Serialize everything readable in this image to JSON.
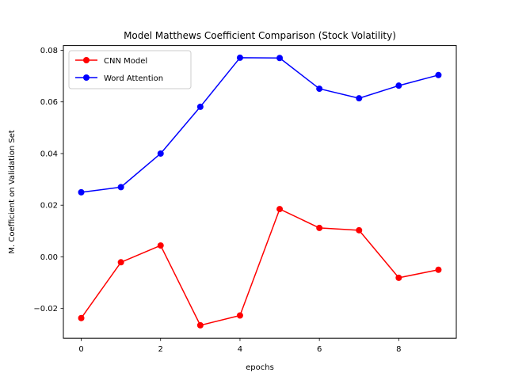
{
  "chart_data": {
    "type": "line",
    "title": "Model Matthews Coefficient Comparison (Stock Volatility)",
    "xlabel": "epochs",
    "ylabel": "M. Coefficient on Validation Set",
    "x": [
      0,
      1,
      2,
      3,
      4,
      5,
      6,
      7,
      8,
      9
    ],
    "xlim": [
      -0.45,
      9.45
    ],
    "ylim": [
      -0.0315,
      0.0818
    ],
    "x_ticks": [
      0,
      2,
      4,
      6,
      8
    ],
    "x_tick_labels": [
      "0",
      "2",
      "4",
      "6",
      "8"
    ],
    "y_ticks": [
      -0.02,
      0.0,
      0.02,
      0.04,
      0.06,
      0.08
    ],
    "y_tick_labels": [
      "−0.02",
      "0.00",
      "0.02",
      "0.04",
      "0.06",
      "0.08"
    ],
    "grid": false,
    "legend_position": "top-left",
    "series": [
      {
        "name": "CNN Model",
        "color": "#ff0000",
        "values": [
          -0.0237,
          -0.0021,
          0.0044,
          -0.0265,
          -0.0227,
          0.0185,
          0.0112,
          0.0103,
          -0.0081,
          -0.005
        ]
      },
      {
        "name": "Word Attention",
        "color": "#0000ff",
        "values": [
          0.025,
          0.027,
          0.04,
          0.0581,
          0.0771,
          0.077,
          0.0651,
          0.0614,
          0.0663,
          0.0704
        ]
      }
    ]
  }
}
